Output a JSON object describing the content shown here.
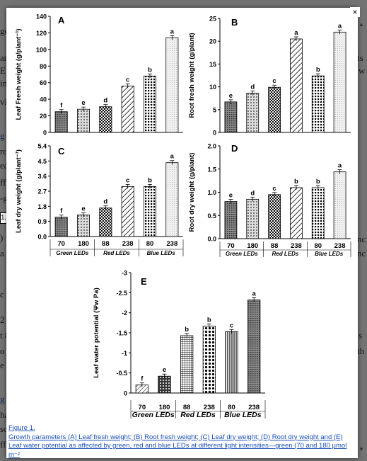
{
  "background": {
    "lines": [
      {
        "text": "ge",
        "x": 0,
        "y": 48,
        "link": false
      },
      {
        "text": "an",
        "x": 0,
        "y": 86,
        "link": false
      },
      {
        "text": "E",
        "x": 0,
        "y": 104,
        "link": false
      },
      {
        "text": "in",
        "x": 0,
        "y": 122,
        "link": false
      },
      {
        "text": "vi",
        "x": 0,
        "y": 148,
        "link": false
      },
      {
        "text": "g",
        "x": 0,
        "y": 196,
        "link": true
      },
      {
        "text": "ro",
        "x": 0,
        "y": 218,
        "link": false
      },
      {
        "text": "ea",
        "x": 0,
        "y": 238,
        "link": false
      },
      {
        "text": "ff",
        "x": 0,
        "y": 262,
        "link": false
      },
      {
        "text": "-g",
        "x": 0,
        "y": 284,
        "link": false
      },
      {
        "text": ")",
        "x": 0,
        "y": 340,
        "link": false
      },
      {
        "text": "a",
        "x": 0,
        "y": 362,
        "link": false
      },
      {
        "text": "c",
        "x": 0,
        "y": 420,
        "link": false
      },
      {
        "text": "2",
        "x": 0,
        "y": 456,
        "link": false
      },
      {
        "text": "t 8",
        "x": 0,
        "y": 478,
        "link": false
      },
      {
        "text": "o",
        "x": 0,
        "y": 500,
        "link": false
      },
      {
        "text": "e",
        "x": 0,
        "y": 520,
        "link": false
      },
      {
        "text": "g",
        "x": 0,
        "y": 568,
        "link": true
      },
      {
        "text": "ha",
        "x": 0,
        "y": 590,
        "link": false
      },
      {
        "text": "so",
        "x": 0,
        "y": 610,
        "link": false
      },
      {
        "text": "ff",
        "x": 0,
        "y": 632,
        "link": false
      },
      {
        "text": "ts",
        "x": 505,
        "y": 86,
        "link": false
      },
      {
        "text": "w",
        "x": 507,
        "y": 104,
        "link": false
      },
      {
        "text": "nc",
        "x": 505,
        "y": 342,
        "link": false
      },
      {
        "text": "nc",
        "x": 505,
        "y": 362,
        "link": false
      },
      {
        "text": "s",
        "x": 507,
        "y": 478,
        "link": false
      },
      {
        "text": "th",
        "x": 505,
        "y": 500,
        "link": false
      }
    ],
    "side_label": "1."
  },
  "controls": {
    "close": "×",
    "scroll_up": "▲",
    "scroll_down": "▼"
  },
  "colors": {
    "bar_stroke": "#000",
    "caption_link": "#1a4fb5"
  },
  "figure": {
    "groups": [
      {
        "name": "Green LEDs",
        "intensities": [
          "70",
          "180"
        ]
      },
      {
        "name": "Red LEDs",
        "intensities": [
          "88",
          "238"
        ]
      },
      {
        "name": "Blue LEDs",
        "intensities": [
          "80",
          "238"
        ]
      }
    ],
    "groups_panel_d": [
      "Green LEDs",
      "Red LEDs",
      "Blue LEDs"
    ],
    "group_labels_ae": [
      "Green LEDs",
      "Red LEDs",
      "Blue LEDs"
    ],
    "group_labels_c": [
      "Green LEDs",
      "Red LEDs",
      "Blue LEDs"
    ]
  },
  "chart_data": [
    {
      "type": "bar",
      "panel": "A",
      "ylabel": "Leaf Fresh weight (g/plant⁻¹)",
      "ylim": [
        0,
        140
      ],
      "yticks": [
        "0",
        "20",
        "40",
        "60",
        "80",
        "100",
        "120",
        "140"
      ],
      "categories": [
        "70",
        "180",
        "88",
        "238",
        "80",
        "238"
      ],
      "values": [
        25,
        28,
        31,
        56,
        68,
        114
      ],
      "letters": [
        "f",
        "e",
        "d",
        "c",
        "b",
        "a"
      ]
    },
    {
      "type": "bar",
      "panel": "B",
      "ylabel": "Root fresh weight (g/plant)",
      "ylim": [
        0,
        25
      ],
      "yticks": [
        "0",
        "5",
        "10",
        "15",
        "20",
        "25"
      ],
      "categories": [
        "70",
        "180",
        "88",
        "238",
        "80",
        "238"
      ],
      "values": [
        6.7,
        8.6,
        9.9,
        20.5,
        12.4,
        22.0
      ],
      "letters": [
        "e",
        "d",
        "c",
        "a",
        "b",
        "a"
      ]
    },
    {
      "type": "bar",
      "panel": "C",
      "ylabel": "Leaf dry weight (g/plant⁻¹)",
      "ylim": [
        0,
        5.4
      ],
      "yticks": [
        "0.0",
        "0.9",
        "1.8",
        "2.7",
        "3.6",
        "4.5",
        "5.4"
      ],
      "categories": [
        "70",
        "180",
        "88",
        "238",
        "80",
        "238"
      ],
      "values": [
        1.15,
        1.28,
        1.7,
        2.98,
        2.98,
        4.4
      ],
      "letters": [
        "f",
        "e",
        "d",
        "c",
        "b",
        "a"
      ]
    },
    {
      "type": "bar",
      "panel": "D",
      "ylabel": "Root dry weight (g/plant)",
      "ylim": [
        0,
        2.0
      ],
      "yticks": [
        "0.0",
        "0.5",
        "1.0",
        "1.5",
        "2.0"
      ],
      "categories": [
        "70",
        "180",
        "88",
        "238",
        "80",
        "238"
      ],
      "values": [
        0.8,
        0.85,
        0.95,
        1.1,
        1.1,
        1.44
      ],
      "letters": [
        "e",
        "d",
        "c",
        "b",
        "b",
        "a"
      ]
    },
    {
      "type": "bar",
      "panel": "E",
      "ylabel": "Leaf water potential (Ψw Pa)",
      "ylim": [
        0,
        -3
      ],
      "yticks": [
        "0",
        "-0.5",
        "-1",
        "-1.5",
        "-2",
        "-2.5",
        "-3"
      ],
      "categories": [
        "70",
        "180",
        "88",
        "238",
        "80",
        "238"
      ],
      "values": [
        -0.2,
        -0.42,
        -1.43,
        -1.67,
        -1.53,
        -2.32
      ],
      "letters": [
        "f",
        "e",
        "b",
        "b",
        "c",
        "a"
      ]
    }
  ],
  "caption": {
    "figure_label": "Figure 1.",
    "text": "Growth parameters (A) Leaf fresh weight; (B) Root fresh weight; (C) Leaf dry weight; (D) Root dry weight and (E) Leaf water potential as affected by green, red and blue LEDs at different light intensities—green (70 and 180 μmol m⁻²"
  }
}
